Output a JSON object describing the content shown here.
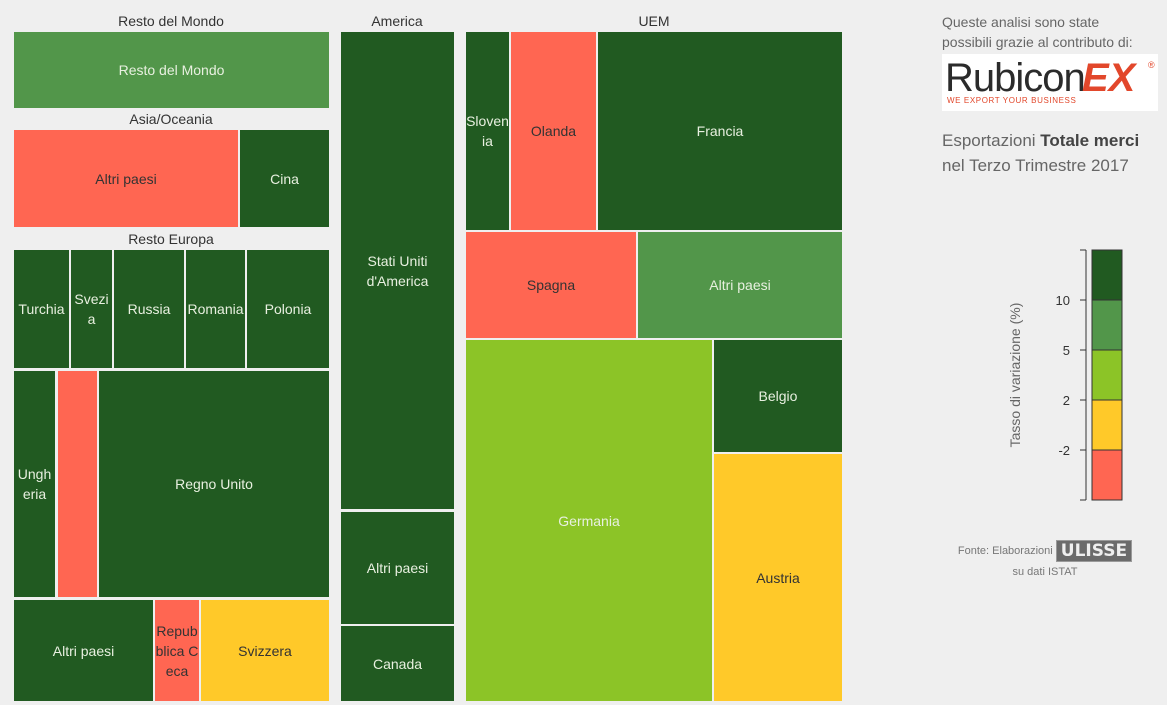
{
  "chart_data": {
    "type": "treemap",
    "groups": [
      {
        "name": "Resto del Mondo",
        "items": [
          {
            "label": "Resto del Mondo",
            "color_class": "5-10"
          }
        ]
      },
      {
        "name": "Asia/Oceania",
        "items": [
          {
            "label": "Altri paesi",
            "color_class": "<-2"
          },
          {
            "label": "Cina",
            "color_class": ">10"
          }
        ]
      },
      {
        "name": "Resto Europa",
        "items": [
          {
            "label": "Turchia",
            "color_class": ">10"
          },
          {
            "label": "Svezia",
            "color_class": ">10"
          },
          {
            "label": "Russia",
            "color_class": ">10"
          },
          {
            "label": "Romania",
            "color_class": ">10"
          },
          {
            "label": "Polonia",
            "color_class": ">10"
          },
          {
            "label": "Ungheria",
            "color_class": ">10"
          },
          {
            "label": "",
            "color_class": "<-2"
          },
          {
            "label": "Regno Unito",
            "color_class": ">10"
          },
          {
            "label": "Altri paesi",
            "color_class": ">10"
          },
          {
            "label": "Repubblica Ceca",
            "color_class": "<-2"
          },
          {
            "label": "Svizzera",
            "color_class": "-2-2"
          }
        ]
      },
      {
        "name": "America",
        "items": [
          {
            "label": "Stati Uniti d'America",
            "color_class": ">10"
          },
          {
            "label": "Altri paesi",
            "color_class": ">10"
          },
          {
            "label": "Canada",
            "color_class": ">10"
          }
        ]
      },
      {
        "name": "UEM",
        "items": [
          {
            "label": "Slovenia",
            "color_class": ">10"
          },
          {
            "label": "Olanda",
            "color_class": "<-2"
          },
          {
            "label": "Francia",
            "color_class": ">10"
          },
          {
            "label": "Spagna",
            "color_class": "<-2"
          },
          {
            "label": "Altri paesi",
            "color_class": "5-10"
          },
          {
            "label": "Germania",
            "color_class": "2-5"
          },
          {
            "label": "Belgio",
            "color_class": ">10"
          },
          {
            "label": "Austria",
            "color_class": "-2-2"
          }
        ]
      }
    ],
    "legend": {
      "title": "Tasso di variazione (%)",
      "ticks": [
        "10",
        "5",
        "2",
        "-2"
      ],
      "classes": [
        {
          "class": ">10",
          "color": "#215a21"
        },
        {
          "class": "5-10",
          "color": "#52964a"
        },
        {
          "class": "2-5",
          "color": "#8cc427"
        },
        {
          "class": "-2-2",
          "color": "#ffc929"
        },
        {
          "class": "<-2",
          "color": "#ff6652"
        }
      ]
    }
  },
  "sponsor": {
    "text": "Queste analisi sono state possibili grazie al contributo di:",
    "logo_name": "Rubicon",
    "logo_ex": "EX",
    "logo_reg": "®",
    "logo_tagline": "WE EXPORT YOUR BUSINESS"
  },
  "headline": {
    "prefix": "Esportazioni ",
    "bold": "Totale merci",
    "line2": "nel Terzo Trimestre 2017"
  },
  "source": {
    "prefix": "Fonte: Elaborazioni",
    "brand": "ULISSE",
    "suffix": "su dati ISTAT"
  }
}
